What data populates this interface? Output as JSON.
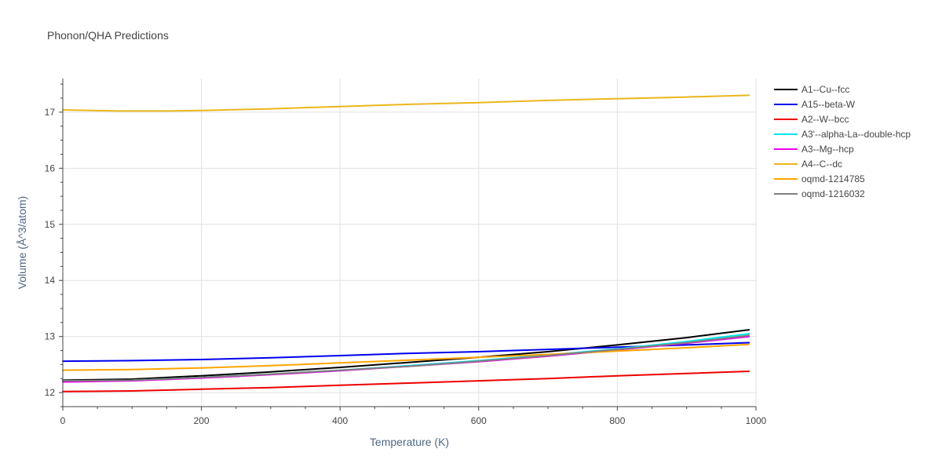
{
  "chart_data": {
    "type": "line",
    "title": "Phonon/QHA Predictions",
    "xlabel": "Temperature (K)",
    "ylabel": "Volume (Å^3/atom)",
    "xlim": [
      0,
      1000
    ],
    "ylim": [
      11.75,
      17.6
    ],
    "xticks": [
      0,
      200,
      400,
      600,
      800,
      1000
    ],
    "yticks": [
      12,
      13,
      14,
      15,
      16,
      17
    ],
    "grid": true,
    "legend_position": "top-right",
    "series": [
      {
        "name": "A1--Cu--fcc",
        "color": "#000000",
        "x": [
          0,
          100,
          200,
          300,
          400,
          500,
          600,
          700,
          800,
          900,
          990
        ],
        "y": [
          12.22,
          12.24,
          12.3,
          12.37,
          12.45,
          12.54,
          12.63,
          12.73,
          12.85,
          12.98,
          13.12
        ]
      },
      {
        "name": "A15--beta-W",
        "color": "#0000ee",
        "x": [
          0,
          100,
          200,
          300,
          400,
          500,
          600,
          700,
          800,
          900,
          990
        ],
        "y": [
          12.56,
          12.57,
          12.59,
          12.62,
          12.66,
          12.7,
          12.73,
          12.77,
          12.81,
          12.85,
          12.89
        ]
      },
      {
        "name": "A2--W--bcc",
        "color": "#ee0000",
        "x": [
          0,
          100,
          200,
          300,
          400,
          500,
          600,
          700,
          800,
          900,
          990
        ],
        "y": [
          12.02,
          12.03,
          12.06,
          12.09,
          12.13,
          12.17,
          12.21,
          12.25,
          12.3,
          12.34,
          12.38
        ]
      },
      {
        "name": "A3'--alpha-La--double-hcp",
        "color": "#00e5ee",
        "x": [
          0,
          100,
          200,
          300,
          400,
          500,
          600,
          700,
          800,
          900,
          990
        ],
        "y": [
          12.2,
          12.22,
          12.27,
          12.33,
          12.4,
          12.48,
          12.57,
          12.67,
          12.78,
          12.91,
          13.05
        ]
      },
      {
        "name": "A3--Mg--hcp",
        "color": "#ee00ee",
        "x": [
          0,
          100,
          200,
          300,
          400,
          500,
          600,
          700,
          800,
          900,
          990
        ],
        "y": [
          12.19,
          12.21,
          12.26,
          12.32,
          12.39,
          12.47,
          12.55,
          12.65,
          12.76,
          12.88,
          13.0
        ]
      },
      {
        "name": "A4--C--dc",
        "color": "#eab71c",
        "x": [
          0,
          80,
          150,
          200,
          300,
          400,
          500,
          600,
          700,
          800,
          900,
          990
        ],
        "y": [
          17.04,
          17.02,
          17.02,
          17.03,
          17.06,
          17.1,
          17.14,
          17.17,
          17.21,
          17.24,
          17.27,
          17.3
        ]
      },
      {
        "name": "oqmd-1214785",
        "color": "#ffa500",
        "x": [
          0,
          100,
          200,
          300,
          400,
          500,
          600,
          700,
          800,
          900,
          990
        ],
        "y": [
          12.4,
          12.41,
          12.44,
          12.48,
          12.53,
          12.58,
          12.63,
          12.68,
          12.74,
          12.8,
          12.86
        ]
      },
      {
        "name": "oqmd-1216032",
        "color": "#808080",
        "x": [
          0,
          100,
          200,
          300,
          400,
          500,
          600,
          700,
          800,
          900,
          990
        ],
        "y": [
          12.21,
          12.22,
          12.27,
          12.33,
          12.4,
          12.47,
          12.56,
          12.66,
          12.77,
          12.89,
          13.02
        ]
      }
    ]
  }
}
